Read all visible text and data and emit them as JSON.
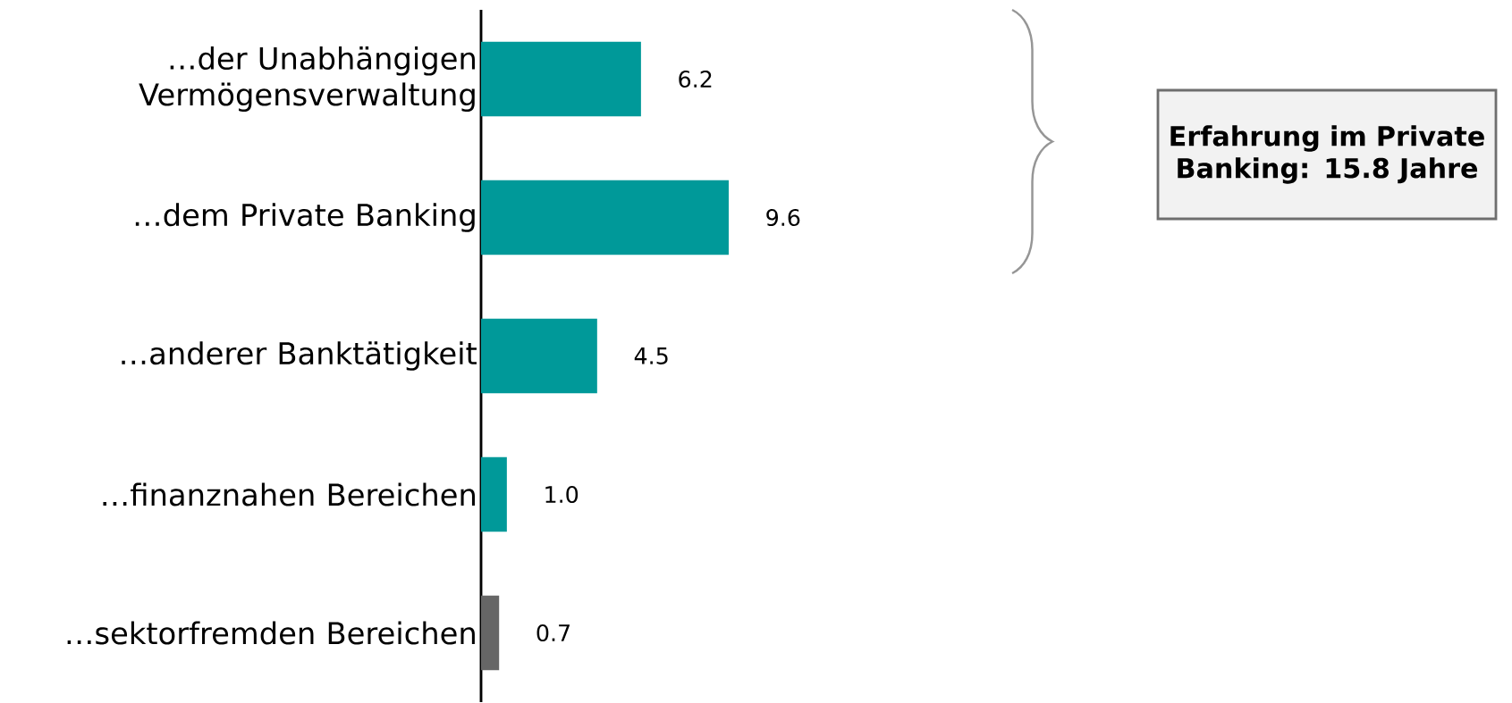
{
  "chart_data": {
    "type": "bar",
    "orientation": "horizontal",
    "categories": [
      "…der Unabhängigen Vermögensverwaltung",
      "…dem Private Banking",
      "…anderer Banktätigkeit",
      "…finanznahen Bereichen",
      "…sektorfremden Bereichen"
    ],
    "values": [
      6.2,
      9.6,
      4.5,
      1.0,
      0.7
    ],
    "value_labels": [
      "6.2",
      "9.6",
      "4.5",
      "1.0",
      "0.7"
    ],
    "colors": [
      "#009999",
      "#009999",
      "#009999",
      "#009999",
      "#666666"
    ],
    "tick_labels": "y",
    "annotations": [
      "Erfahrung im Private Banking: 15.8 Jahre"
    ]
  }
}
